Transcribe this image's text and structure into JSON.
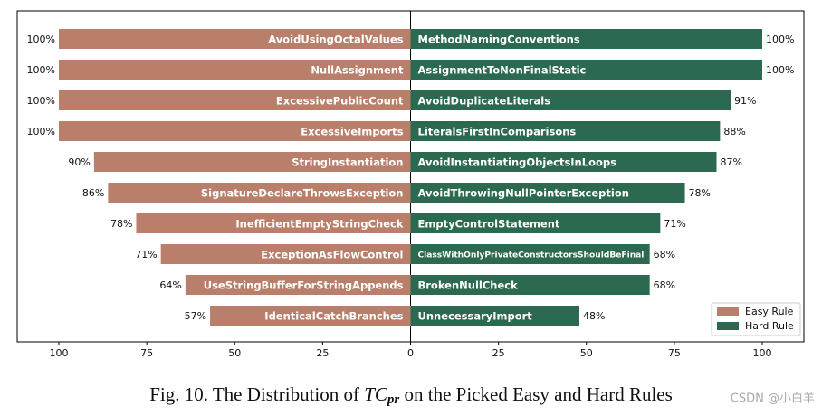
{
  "chart_data": {
    "type": "diverging_bar",
    "caption": {
      "prefix": "Fig. 10.  The Distribution of ",
      "symbol": "TC",
      "subscript": "pr",
      "suffix": " on the Picked Easy and Hard Rules"
    },
    "watermark": "CSDN @小白羊",
    "xlim": [
      -100,
      100
    ],
    "xticks": [
      {
        "value": -100,
        "label": "100"
      },
      {
        "value": -75,
        "label": "75"
      },
      {
        "value": -50,
        "label": "50"
      },
      {
        "value": -25,
        "label": "25"
      },
      0,
      25,
      50,
      75,
      100
    ],
    "legend": "lower right",
    "series": [
      {
        "name": "Easy Rule",
        "color": "#b97f6a",
        "categories": [
          "AvoidUsingOctalValues",
          "NullAssignment",
          "ExcessivePublicCount",
          "ExcessiveImports",
          "StringInstantiation",
          "SignatureDeclareThrowsException",
          "InefficientEmptyStringCheck",
          "ExceptionAsFlowControl",
          "UseStringBufferForStringAppends",
          "IdenticalCatchBranches"
        ],
        "values": [
          100,
          100,
          100,
          100,
          90,
          86,
          78,
          71,
          64,
          57
        ],
        "value_labels": [
          "100%",
          "100%",
          "100%",
          "100%",
          "90%",
          "86%",
          "78%",
          "71%",
          "64%",
          "57%"
        ]
      },
      {
        "name": "Hard Rule",
        "color": "#2b6a50",
        "categories": [
          "MethodNamingConventions",
          "AssignmentToNonFinalStatic",
          "AvoidDuplicateLiterals",
          "LiteralsFirstInComparisons",
          "AvoidInstantiatingObjectsInLoops",
          "AvoidThrowingNullPointerException",
          "EmptyControlStatement",
          "ClassWithOnlyPrivateConstructorsShouldBeFinal",
          "BrokenNullCheck",
          "UnnecessaryImport"
        ],
        "values": [
          100,
          100,
          91,
          88,
          87,
          78,
          71,
          68,
          68,
          48
        ],
        "value_labels": [
          "100%",
          "100%",
          "91%",
          "88%",
          "87%",
          "78%",
          "71%",
          "68%",
          "68%",
          "48%"
        ]
      }
    ]
  }
}
